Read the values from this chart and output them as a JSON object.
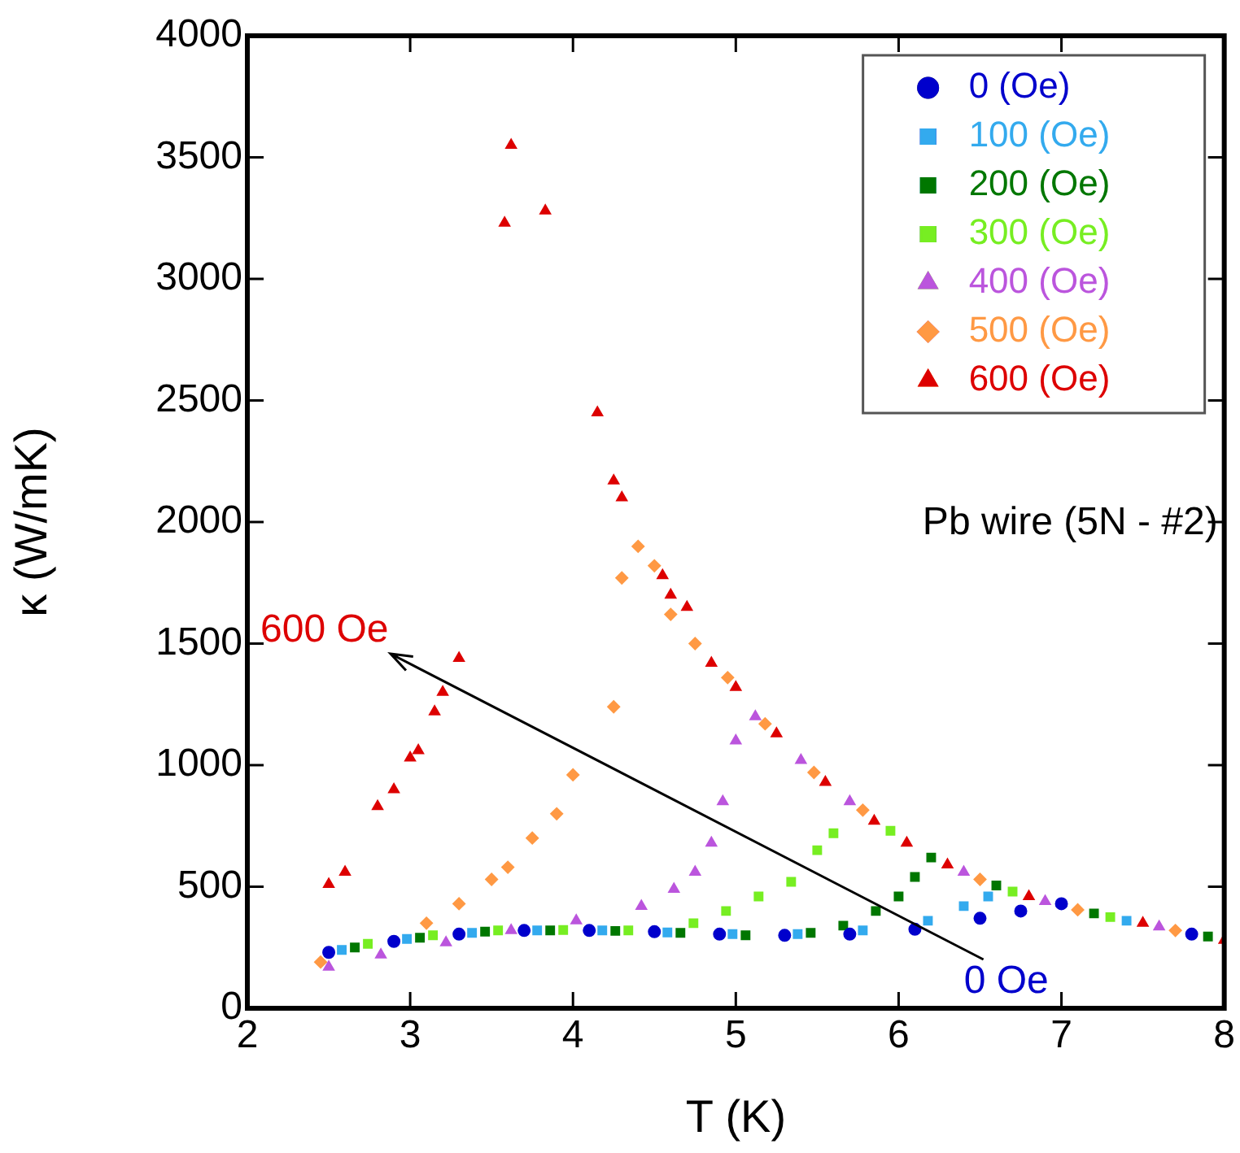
{
  "chart_data": {
    "type": "scatter",
    "xlabel": "T (K)",
    "ylabel": "κ (W/mK)",
    "xlim": [
      2,
      8
    ],
    "xticks": [
      2,
      3,
      4,
      5,
      6,
      7,
      8
    ],
    "ylim": [
      0,
      4000
    ],
    "yticks": [
      0,
      500,
      1000,
      1500,
      2000,
      2500,
      3000,
      3500,
      4000
    ],
    "grid": false,
    "legend": "top right",
    "annotations": [
      "600 Oe",
      "0 Oe",
      "Pb wire (5N - #2)"
    ],
    "series": [
      {
        "name": "0 (Oe)",
        "color": "#0000cc",
        "marker": "circle",
        "x": [
          2.5,
          2.9,
          3.3,
          3.7,
          4.1,
          4.5,
          4.9,
          5.3,
          5.7,
          6.1,
          6.5,
          6.75,
          7.0,
          7.8
        ],
        "values": [
          230,
          275,
          305,
          320,
          320,
          315,
          305,
          300,
          305,
          325,
          370,
          400,
          430,
          305
        ]
      },
      {
        "name": "100 (Oe)",
        "color": "#33aaee",
        "marker": "square",
        "x": [
          2.58,
          2.98,
          3.38,
          3.78,
          4.18,
          4.58,
          4.98,
          5.38,
          5.78,
          6.18,
          6.4,
          6.55,
          7.4
        ],
        "values": [
          240,
          285,
          310,
          320,
          320,
          312,
          305,
          305,
          320,
          360,
          420,
          460,
          360
        ]
      },
      {
        "name": "200 (Oe)",
        "color": "#007700",
        "marker": "square",
        "x": [
          2.66,
          3.06,
          3.46,
          3.86,
          4.26,
          4.66,
          5.06,
          5.46,
          5.66,
          5.86,
          6.0,
          6.1,
          6.2,
          6.6,
          7.2,
          7.9
        ],
        "values": [
          250,
          290,
          315,
          320,
          318,
          310,
          300,
          310,
          340,
          400,
          460,
          540,
          620,
          505,
          390,
          295
        ]
      },
      {
        "name": "300 (Oe)",
        "color": "#77ee22",
        "marker": "square",
        "x": [
          2.74,
          3.14,
          3.54,
          3.94,
          4.34,
          4.74,
          4.94,
          5.14,
          5.34,
          5.5,
          5.6,
          5.95,
          6.7,
          7.3
        ],
        "values": [
          265,
          300,
          320,
          322,
          320,
          350,
          400,
          460,
          520,
          650,
          720,
          730,
          480,
          375
        ]
      },
      {
        "name": "400 (Oe)",
        "color": "#bb55dd",
        "marker": "triangle",
        "x": [
          2.5,
          2.82,
          3.22,
          3.62,
          4.02,
          4.42,
          4.62,
          4.75,
          4.85,
          4.92,
          5.0,
          5.12,
          5.4,
          5.7,
          6.4,
          6.9,
          7.6
        ],
        "values": [
          170,
          220,
          270,
          320,
          360,
          420,
          490,
          560,
          680,
          850,
          1100,
          1200,
          1020,
          850,
          560,
          440,
          335
        ]
      },
      {
        "name": "500 (Oe)",
        "color": "#ff9944",
        "marker": "diamond",
        "x": [
          2.45,
          3.1,
          3.3,
          3.5,
          3.6,
          3.75,
          3.9,
          4.0,
          4.25,
          4.3,
          4.4,
          4.5,
          4.6,
          4.75,
          4.95,
          5.18,
          5.48,
          5.78,
          6.5,
          7.1,
          7.7
        ],
        "values": [
          190,
          350,
          430,
          530,
          580,
          700,
          800,
          960,
          1240,
          1770,
          1900,
          1820,
          1620,
          1500,
          1360,
          1170,
          970,
          815,
          530,
          405,
          320
        ]
      },
      {
        "name": "600 (Oe)",
        "color": "#dd0000",
        "marker": "triangle",
        "x": [
          2.5,
          2.6,
          2.8,
          2.9,
          3.0,
          3.05,
          3.15,
          3.2,
          3.3,
          3.58,
          3.62,
          3.83,
          4.15,
          4.25,
          4.3,
          4.55,
          4.6,
          4.7,
          4.85,
          5.0,
          5.25,
          5.55,
          5.85,
          6.05,
          6.3,
          6.8,
          7.5,
          8.0
        ],
        "values": [
          510,
          560,
          830,
          900,
          1030,
          1060,
          1220,
          1300,
          1440,
          3230,
          3550,
          3280,
          2450,
          2170,
          2100,
          1780,
          1700,
          1650,
          1420,
          1320,
          1130,
          930,
          770,
          680,
          590,
          460,
          350,
          280
        ]
      }
    ]
  }
}
